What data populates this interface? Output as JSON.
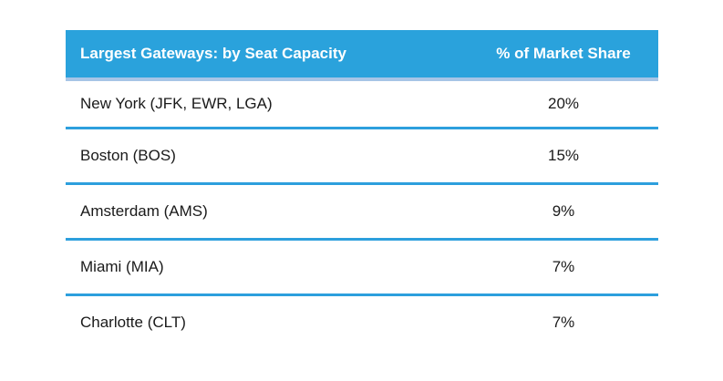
{
  "table": {
    "header": {
      "col1": "Largest Gateways: by Seat Capacity",
      "col2": "% of Market Share"
    },
    "rows": [
      {
        "gateway": "New York (JFK, EWR, LGA)",
        "share": "20%"
      },
      {
        "gateway": "Boston (BOS)",
        "share": "15%"
      },
      {
        "gateway": "Amsterdam (AMS)",
        "share": "9%"
      },
      {
        "gateway": "Miami (MIA)",
        "share": "7%"
      },
      {
        "gateway": "Charlotte (CLT)",
        "share": "7%"
      }
    ],
    "colors": {
      "header_bg": "#2AA2DC",
      "header_underline": "#A7C5E6",
      "divider": "#2D9FDD",
      "header_text": "#FFFFFF",
      "row_text": "#1A1A1A"
    }
  },
  "chart_data": {
    "type": "table",
    "title": "Largest Gateways: by Seat Capacity",
    "columns": [
      "Largest Gateways: by Seat Capacity",
      "% of Market Share"
    ],
    "categories": [
      "New York (JFK, EWR, LGA)",
      "Boston (BOS)",
      "Amsterdam (AMS)",
      "Miami (MIA)",
      "Charlotte (CLT)"
    ],
    "values": [
      20,
      15,
      9,
      7,
      7
    ],
    "value_unit": "%"
  }
}
